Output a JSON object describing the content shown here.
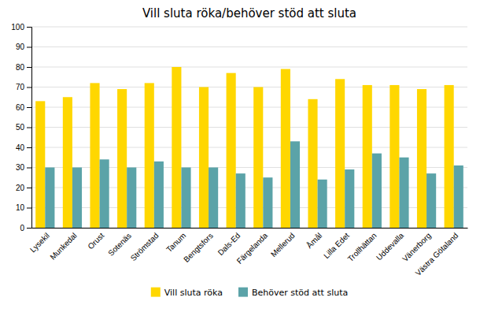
{
  "chart_data": {
    "type": "bar",
    "title": "Vill sluta röka/behöver stöd att sluta",
    "categories": [
      "Lysekil",
      "Munkedal",
      "Orust",
      "Sotenäs",
      "Strömstad",
      "Tanum",
      "Bengtsfors",
      "Dals-Ed",
      "Färgelanda",
      "Mellerud",
      "Åmål",
      "Lilla Edet",
      "Trollhättan",
      "Uddevalla",
      "Vänerborg",
      "Västra Götaland"
    ],
    "series": [
      {
        "name": "Vill sluta röka",
        "color": "#FFD700",
        "values": [
          63,
          65,
          72,
          69,
          72,
          80,
          70,
          77,
          70,
          79,
          64,
          74,
          71,
          71,
          69,
          71
        ]
      },
      {
        "name": "Behöver stöd att sluta",
        "color": "#5BA3A8",
        "values": [
          30,
          30,
          34,
          30,
          33,
          30,
          30,
          27,
          25,
          43,
          24,
          29,
          37,
          35,
          27,
          31
        ]
      }
    ],
    "ylim": [
      0,
      100
    ],
    "yticks": [
      0,
      10,
      20,
      30,
      40,
      50,
      60,
      70,
      80,
      90,
      100
    ],
    "grid": true,
    "legend": "bottom"
  }
}
